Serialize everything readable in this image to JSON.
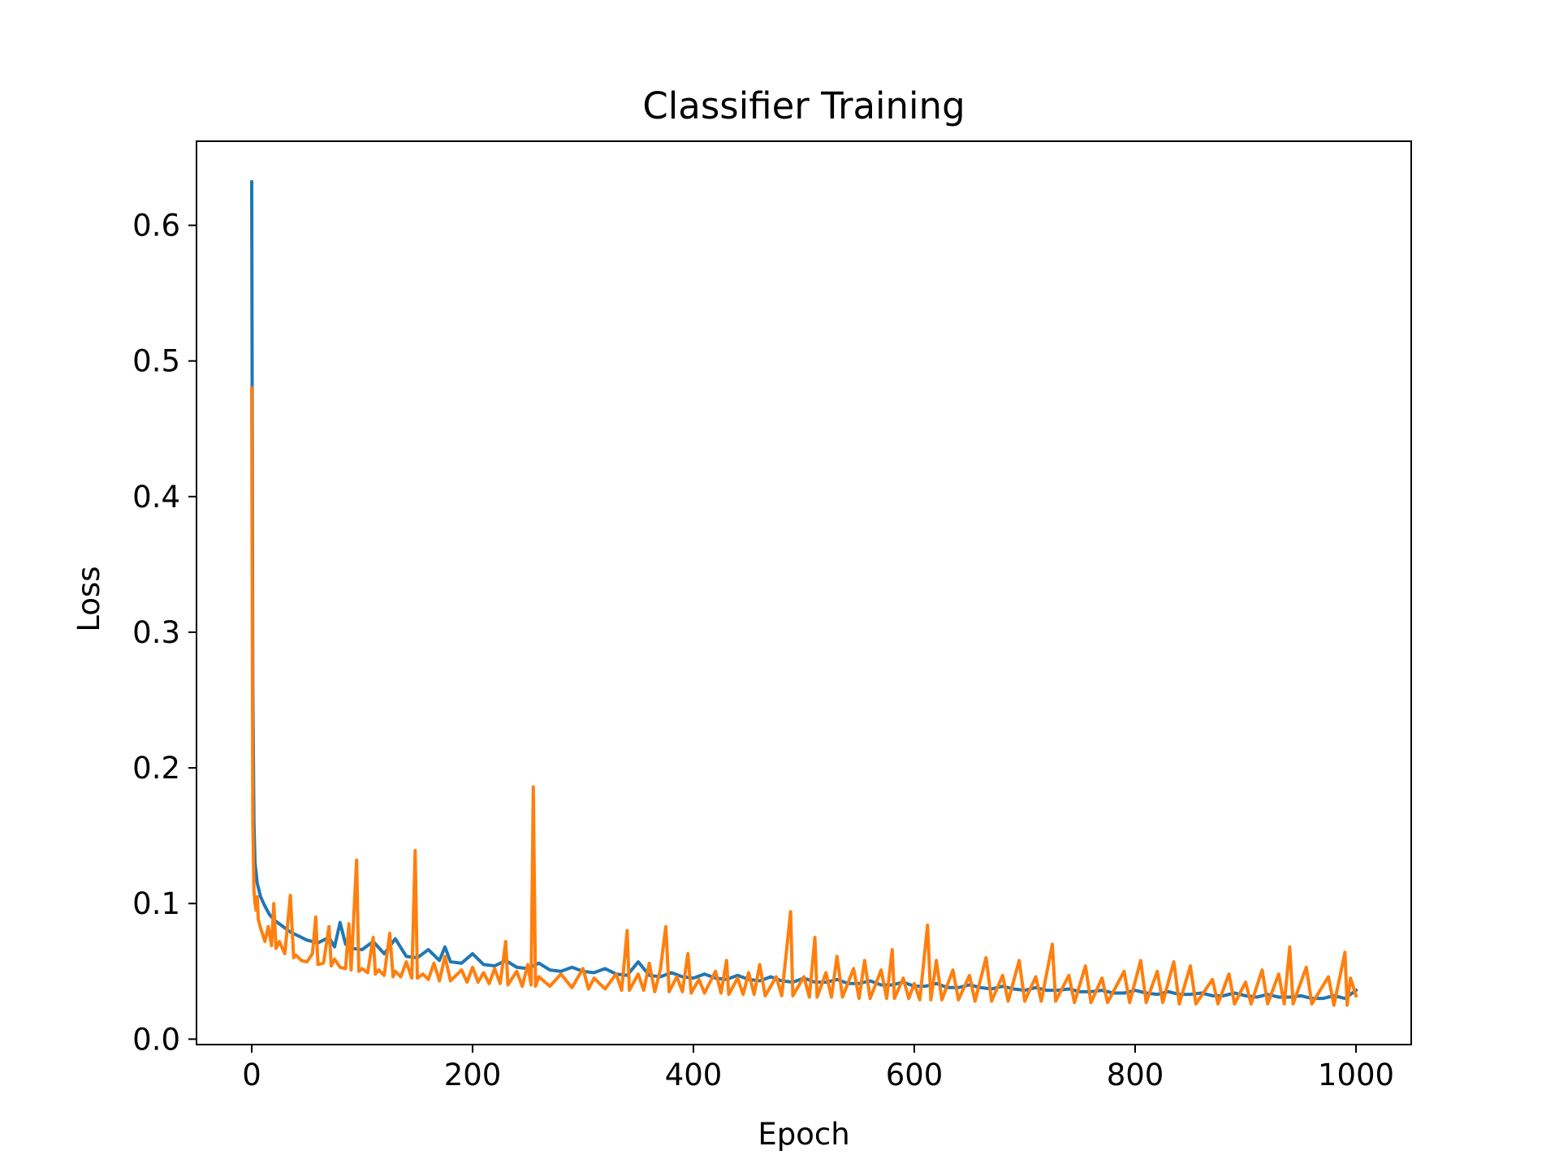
{
  "chart_data": {
    "type": "line",
    "title": "Classifier Training",
    "xlabel": "Epoch",
    "ylabel": "Loss",
    "xlim": [
      -50,
      1050
    ],
    "ylim": [
      -0.004,
      0.662
    ],
    "xticks": [
      0,
      200,
      400,
      600,
      800,
      1000
    ],
    "xtick_labels": [
      "0",
      "200",
      "400",
      "600",
      "800",
      "1000"
    ],
    "yticks": [
      0.0,
      0.1,
      0.2,
      0.3,
      0.4,
      0.5,
      0.6
    ],
    "ytick_labels": [
      "0.0",
      "0.1",
      "0.2",
      "0.3",
      "0.4",
      "0.5",
      "0.6"
    ],
    "grid": false,
    "legend": "none",
    "series": [
      {
        "color": "#1f77b4",
        "points": [
          [
            0,
            0.632
          ],
          [
            1,
            0.26
          ],
          [
            2,
            0.16
          ],
          [
            3,
            0.13
          ],
          [
            5,
            0.115
          ],
          [
            8,
            0.105
          ],
          [
            12,
            0.098
          ],
          [
            16,
            0.092
          ],
          [
            20,
            0.088
          ],
          [
            25,
            0.085
          ],
          [
            30,
            0.082
          ],
          [
            35,
            0.079
          ],
          [
            40,
            0.077
          ],
          [
            45,
            0.075
          ],
          [
            50,
            0.073
          ],
          [
            60,
            0.071
          ],
          [
            70,
            0.075
          ],
          [
            75,
            0.068
          ],
          [
            80,
            0.086
          ],
          [
            85,
            0.07
          ],
          [
            90,
            0.067
          ],
          [
            100,
            0.066
          ],
          [
            110,
            0.072
          ],
          [
            120,
            0.063
          ],
          [
            130,
            0.074
          ],
          [
            140,
            0.061
          ],
          [
            150,
            0.06
          ],
          [
            160,
            0.066
          ],
          [
            170,
            0.058
          ],
          [
            175,
            0.068
          ],
          [
            180,
            0.057
          ],
          [
            190,
            0.056
          ],
          [
            200,
            0.063
          ],
          [
            210,
            0.055
          ],
          [
            220,
            0.054
          ],
          [
            230,
            0.058
          ],
          [
            240,
            0.053
          ],
          [
            250,
            0.052
          ],
          [
            260,
            0.056
          ],
          [
            270,
            0.051
          ],
          [
            280,
            0.05
          ],
          [
            290,
            0.053
          ],
          [
            300,
            0.05
          ],
          [
            310,
            0.049
          ],
          [
            320,
            0.052
          ],
          [
            330,
            0.048
          ],
          [
            340,
            0.047
          ],
          [
            350,
            0.057
          ],
          [
            360,
            0.047
          ],
          [
            370,
            0.046
          ],
          [
            380,
            0.049
          ],
          [
            390,
            0.046
          ],
          [
            400,
            0.045
          ],
          [
            410,
            0.048
          ],
          [
            420,
            0.045
          ],
          [
            430,
            0.044
          ],
          [
            440,
            0.047
          ],
          [
            450,
            0.044
          ],
          [
            460,
            0.043
          ],
          [
            470,
            0.046
          ],
          [
            480,
            0.043
          ],
          [
            490,
            0.042
          ],
          [
            500,
            0.045
          ],
          [
            510,
            0.042
          ],
          [
            520,
            0.042
          ],
          [
            530,
            0.044
          ],
          [
            540,
            0.041
          ],
          [
            550,
            0.041
          ],
          [
            560,
            0.043
          ],
          [
            570,
            0.04
          ],
          [
            580,
            0.04
          ],
          [
            590,
            0.042
          ],
          [
            600,
            0.039
          ],
          [
            610,
            0.039
          ],
          [
            620,
            0.041
          ],
          [
            630,
            0.038
          ],
          [
            640,
            0.038
          ],
          [
            650,
            0.04
          ],
          [
            660,
            0.038
          ],
          [
            670,
            0.037
          ],
          [
            680,
            0.039
          ],
          [
            690,
            0.037
          ],
          [
            700,
            0.036
          ],
          [
            710,
            0.038
          ],
          [
            720,
            0.036
          ],
          [
            730,
            0.036
          ],
          [
            740,
            0.037
          ],
          [
            750,
            0.035
          ],
          [
            760,
            0.035
          ],
          [
            770,
            0.036
          ],
          [
            780,
            0.034
          ],
          [
            790,
            0.034
          ],
          [
            800,
            0.036
          ],
          [
            810,
            0.034
          ],
          [
            820,
            0.033
          ],
          [
            830,
            0.035
          ],
          [
            840,
            0.033
          ],
          [
            850,
            0.033
          ],
          [
            860,
            0.034
          ],
          [
            870,
            0.032
          ],
          [
            880,
            0.032
          ],
          [
            890,
            0.034
          ],
          [
            900,
            0.032
          ],
          [
            910,
            0.031
          ],
          [
            920,
            0.033
          ],
          [
            930,
            0.031
          ],
          [
            940,
            0.031
          ],
          [
            950,
            0.032
          ],
          [
            960,
            0.03
          ],
          [
            970,
            0.03
          ],
          [
            980,
            0.032
          ],
          [
            990,
            0.03
          ],
          [
            1000,
            0.036
          ]
        ]
      },
      {
        "color": "#ff7f0e",
        "points": [
          [
            0,
            0.48
          ],
          [
            1,
            0.16
          ],
          [
            2,
            0.11
          ],
          [
            3,
            0.1
          ],
          [
            4,
            0.095
          ],
          [
            5,
            0.105
          ],
          [
            6,
            0.088
          ],
          [
            8,
            0.082
          ],
          [
            10,
            0.077
          ],
          [
            12,
            0.072
          ],
          [
            15,
            0.083
          ],
          [
            18,
            0.069
          ],
          [
            20,
            0.1
          ],
          [
            22,
            0.067
          ],
          [
            25,
            0.072
          ],
          [
            30,
            0.063
          ],
          [
            35,
            0.106
          ],
          [
            38,
            0.06
          ],
          [
            40,
            0.062
          ],
          [
            45,
            0.058
          ],
          [
            50,
            0.057
          ],
          [
            55,
            0.063
          ],
          [
            58,
            0.09
          ],
          [
            60,
            0.055
          ],
          [
            65,
            0.056
          ],
          [
            70,
            0.083
          ],
          [
            72,
            0.054
          ],
          [
            75,
            0.059
          ],
          [
            80,
            0.053
          ],
          [
            85,
            0.052
          ],
          [
            88,
            0.085
          ],
          [
            90,
            0.051
          ],
          [
            95,
            0.132
          ],
          [
            97,
            0.05
          ],
          [
            100,
            0.052
          ],
          [
            105,
            0.049
          ],
          [
            110,
            0.075
          ],
          [
            112,
            0.048
          ],
          [
            115,
            0.051
          ],
          [
            120,
            0.047
          ],
          [
            125,
            0.078
          ],
          [
            128,
            0.046
          ],
          [
            130,
            0.05
          ],
          [
            135,
            0.046
          ],
          [
            140,
            0.057
          ],
          [
            145,
            0.045
          ],
          [
            148,
            0.139
          ],
          [
            150,
            0.045
          ],
          [
            155,
            0.048
          ],
          [
            160,
            0.044
          ],
          [
            165,
            0.056
          ],
          [
            170,
            0.043
          ],
          [
            175,
            0.061
          ],
          [
            180,
            0.043
          ],
          [
            190,
            0.051
          ],
          [
            195,
            0.042
          ],
          [
            200,
            0.053
          ],
          [
            205,
            0.042
          ],
          [
            210,
            0.049
          ],
          [
            215,
            0.041
          ],
          [
            220,
            0.052
          ],
          [
            225,
            0.041
          ],
          [
            230,
            0.072
          ],
          [
            232,
            0.04
          ],
          [
            240,
            0.05
          ],
          [
            245,
            0.039
          ],
          [
            250,
            0.055
          ],
          [
            253,
            0.04
          ],
          [
            255,
            0.186
          ],
          [
            257,
            0.039
          ],
          [
            260,
            0.046
          ],
          [
            270,
            0.039
          ],
          [
            280,
            0.048
          ],
          [
            290,
            0.038
          ],
          [
            300,
            0.052
          ],
          [
            305,
            0.037
          ],
          [
            310,
            0.045
          ],
          [
            320,
            0.037
          ],
          [
            330,
            0.048
          ],
          [
            335,
            0.036
          ],
          [
            340,
            0.08
          ],
          [
            342,
            0.036
          ],
          [
            350,
            0.048
          ],
          [
            355,
            0.036
          ],
          [
            360,
            0.056
          ],
          [
            365,
            0.035
          ],
          [
            370,
            0.051
          ],
          [
            375,
            0.083
          ],
          [
            378,
            0.035
          ],
          [
            385,
            0.046
          ],
          [
            390,
            0.035
          ],
          [
            395,
            0.063
          ],
          [
            398,
            0.034
          ],
          [
            405,
            0.044
          ],
          [
            410,
            0.034
          ],
          [
            420,
            0.05
          ],
          [
            425,
            0.034
          ],
          [
            430,
            0.058
          ],
          [
            432,
            0.033
          ],
          [
            440,
            0.045
          ],
          [
            445,
            0.033
          ],
          [
            450,
            0.049
          ],
          [
            455,
            0.033
          ],
          [
            460,
            0.055
          ],
          [
            465,
            0.032
          ],
          [
            475,
            0.046
          ],
          [
            480,
            0.032
          ],
          [
            488,
            0.094
          ],
          [
            490,
            0.032
          ],
          [
            500,
            0.046
          ],
          [
            505,
            0.031
          ],
          [
            510,
            0.075
          ],
          [
            512,
            0.031
          ],
          [
            520,
            0.049
          ],
          [
            525,
            0.031
          ],
          [
            530,
            0.061
          ],
          [
            535,
            0.031
          ],
          [
            545,
            0.052
          ],
          [
            550,
            0.03
          ],
          [
            555,
            0.058
          ],
          [
            560,
            0.03
          ],
          [
            570,
            0.051
          ],
          [
            575,
            0.03
          ],
          [
            580,
            0.066
          ],
          [
            582,
            0.03
          ],
          [
            590,
            0.045
          ],
          [
            595,
            0.03
          ],
          [
            600,
            0.041
          ],
          [
            605,
            0.029
          ],
          [
            612,
            0.084
          ],
          [
            615,
            0.029
          ],
          [
            620,
            0.058
          ],
          [
            625,
            0.029
          ],
          [
            635,
            0.051
          ],
          [
            640,
            0.029
          ],
          [
            650,
            0.047
          ],
          [
            655,
            0.028
          ],
          [
            665,
            0.06
          ],
          [
            670,
            0.028
          ],
          [
            680,
            0.047
          ],
          [
            685,
            0.028
          ],
          [
            695,
            0.058
          ],
          [
            700,
            0.028
          ],
          [
            710,
            0.046
          ],
          [
            715,
            0.028
          ],
          [
            725,
            0.07
          ],
          [
            728,
            0.028
          ],
          [
            740,
            0.047
          ],
          [
            745,
            0.027
          ],
          [
            755,
            0.054
          ],
          [
            760,
            0.027
          ],
          [
            770,
            0.045
          ],
          [
            775,
            0.027
          ],
          [
            790,
            0.05
          ],
          [
            795,
            0.027
          ],
          [
            805,
            0.058
          ],
          [
            810,
            0.027
          ],
          [
            820,
            0.05
          ],
          [
            825,
            0.027
          ],
          [
            835,
            0.057
          ],
          [
            840,
            0.026
          ],
          [
            850,
            0.054
          ],
          [
            855,
            0.026
          ],
          [
            870,
            0.044
          ],
          [
            875,
            0.026
          ],
          [
            885,
            0.048
          ],
          [
            890,
            0.026
          ],
          [
            900,
            0.042
          ],
          [
            905,
            0.026
          ],
          [
            915,
            0.051
          ],
          [
            920,
            0.026
          ],
          [
            930,
            0.048
          ],
          [
            935,
            0.026
          ],
          [
            940,
            0.068
          ],
          [
            943,
            0.026
          ],
          [
            955,
            0.053
          ],
          [
            960,
            0.026
          ],
          [
            975,
            0.046
          ],
          [
            980,
            0.025
          ],
          [
            990,
            0.064
          ],
          [
            992,
            0.025
          ],
          [
            995,
            0.045
          ],
          [
            1000,
            0.032
          ]
        ]
      }
    ]
  }
}
